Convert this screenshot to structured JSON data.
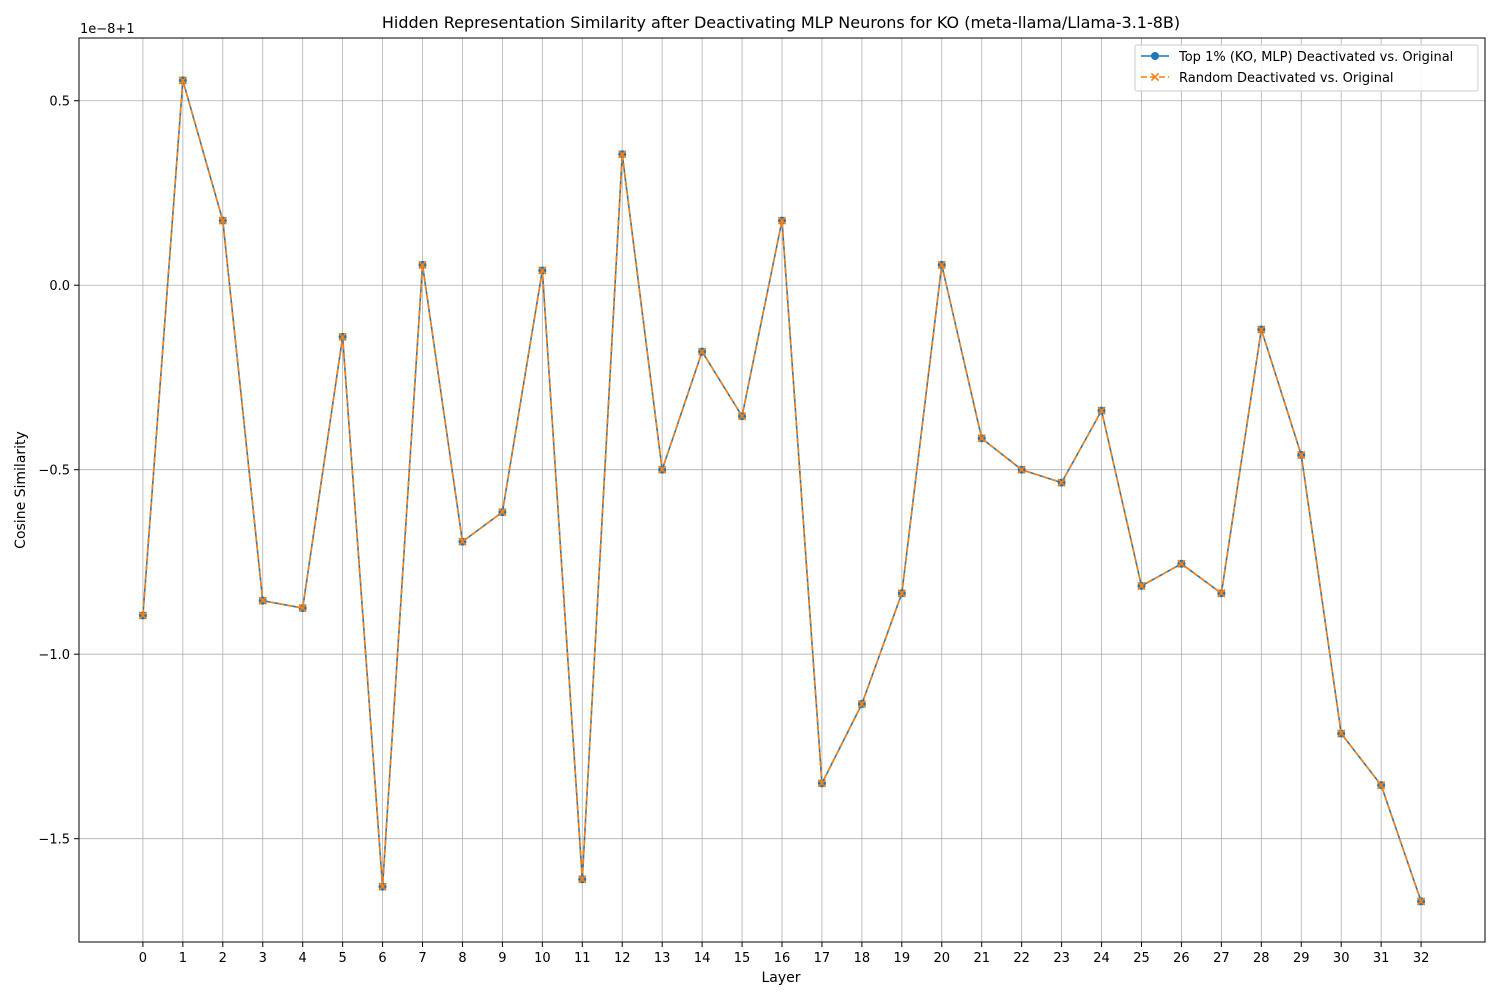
{
  "chart_data": {
    "type": "line",
    "title": "Hidden Representation Similarity after Deactivating MLP Neurons for KO (meta-llama/Llama-3.1-8B)",
    "xlabel": "Layer",
    "ylabel": "Cosine Similarity",
    "offset_label": "1e−8+1",
    "x": [
      0,
      1,
      2,
      3,
      4,
      5,
      6,
      7,
      8,
      9,
      10,
      11,
      12,
      13,
      14,
      15,
      16,
      17,
      18,
      19,
      20,
      21,
      22,
      23,
      24,
      25,
      26,
      27,
      28,
      29,
      30,
      31,
      32
    ],
    "x_tick_labels": [
      "0",
      "1",
      "2",
      "3",
      "4",
      "5",
      "6",
      "7",
      "8",
      "9",
      "10",
      "11",
      "12",
      "13",
      "14",
      "15",
      "16",
      "17",
      "18",
      "19",
      "20",
      "21",
      "22",
      "23",
      "24",
      "25",
      "26",
      "27",
      "28",
      "29",
      "30",
      "31",
      "32"
    ],
    "y_ticks": [
      0.5,
      0.0,
      -0.5,
      -1.0,
      -1.5
    ],
    "y_tick_labels": [
      "0.5",
      "0.0",
      "−0.5",
      "−1.0",
      "−1.5"
    ],
    "xlim": [
      -1.6,
      33.6
    ],
    "ylim": [
      -1.78,
      0.67
    ],
    "grid": true,
    "legend_position": "top-right",
    "series": [
      {
        "name": "Top 1% (KO, MLP) Deactivated vs. Original",
        "color": "#1f77b4",
        "marker": "circle",
        "linestyle": "solid",
        "values": [
          -0.895,
          0.555,
          0.175,
          -0.855,
          -0.875,
          -0.14,
          -1.63,
          0.055,
          -0.695,
          -0.615,
          0.04,
          -1.61,
          0.355,
          -0.5,
          -0.18,
          -0.355,
          0.175,
          -1.35,
          -1.135,
          -0.835,
          0.055,
          -0.415,
          -0.5,
          -0.535,
          -0.34,
          -0.815,
          -0.755,
          -0.835,
          -0.12,
          -0.46,
          -1.215,
          -1.355,
          -1.67
        ]
      },
      {
        "name": "Random Deactivated vs. Original",
        "color": "#ff7f0e",
        "marker": "x",
        "linestyle": "dashed",
        "values": [
          -0.895,
          0.555,
          0.175,
          -0.855,
          -0.875,
          -0.14,
          -1.63,
          0.055,
          -0.695,
          -0.615,
          0.04,
          -1.61,
          0.355,
          -0.5,
          -0.18,
          -0.355,
          0.175,
          -1.35,
          -1.135,
          -0.835,
          0.055,
          -0.415,
          -0.5,
          -0.535,
          -0.34,
          -0.815,
          -0.755,
          -0.835,
          -0.12,
          -0.46,
          -1.215,
          -1.355,
          -1.67
        ]
      }
    ]
  }
}
